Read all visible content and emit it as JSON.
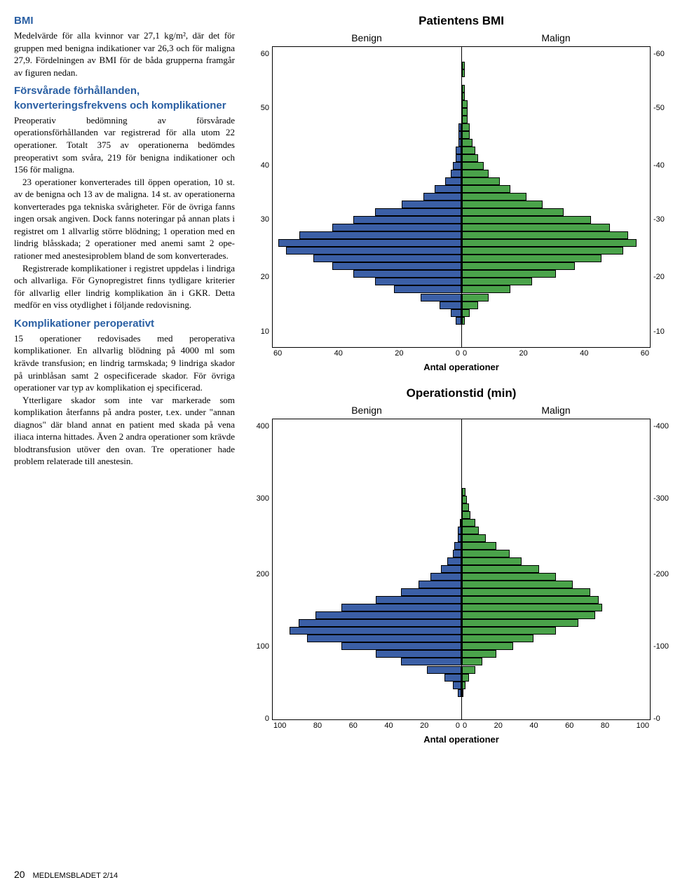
{
  "colors": {
    "heading_blue": "#2a5fa3",
    "bar_blue": "#3b5fa6",
    "bar_green": "#4aa34a",
    "border": "#000000",
    "background": "#ffffff"
  },
  "left": {
    "h1": "BMI",
    "p1": "Medelvärde för alla kvinnor var 27,1 kg/m², där det för gruppen med benigna indikationer var 26,3 och för maligna 27,9. Fördelningen av BMI för de båda grupperna framgår av figuren nedan.",
    "h2": "Försvårade förhållanden, konverteringsfrekvens och komplikationer",
    "p2": "Preoperativ bedömning av försvårade operationsförhållanden var registrerad för alla utom 22 operationer. Totalt 375 av operationerna bedömdes preoperativt som svåra, 219 för benigna indikationer och 156 för maligna.",
    "p3": "23 operationer konverterades till öppen operation, 10 st. av de benigna och 13 av de maligna. 14 st. av operationer­na konverterades pga tekniska svårighe­ter. För de övriga fanns ingen orsak angi­ven. Dock fanns noteringar på annan plats i registret om 1 allvarlig större blöd­ning; 1 operation med en lindrig blåsska­da; 2 operationer med anemi samt 2 ope­rationer med anestesiproblem bland de som konverterades.",
    "p4": "Registrerade komplikationer i regis­tret uppdelas i lindriga och allvarliga. För Gynopregistret finns tydligare kriterier för allvarlig eller lindrig komplikation än i GKR. Detta medför en viss otydlighet i följande redovisning.",
    "h3": "Komplikationer peroperativt",
    "p5": "15 operationer redovisades med perope­rativa komplikationer. En allvarlig blöd­ning på 4000 ml som krävde transfusion; en lindrig tarmskada; 9 lindriga skador på urinblåsan samt 2 ospecificerade ska­dor. För övriga operationer var typ av komplikation ej specificerad.",
    "p6": "Ytterligare skador som inte var mar­kerade som komplikation återfanns på andra poster, t.ex. under \"annan diagnos\" där bland annat en patient med skada på vena iliaca interna hittades. Även 2 andra operationer som krävde blodtransfusion utöver den ovan. Tre operationer hade problem relaterade till anestesin."
  },
  "chart1": {
    "title": "Patientens BMI",
    "panel_left": "Benign",
    "panel_right": "Malign",
    "xlabel": "Antal operationer",
    "y_ticks": [
      60,
      50,
      40,
      30,
      20,
      10
    ],
    "y_positions": [
      3,
      21,
      40,
      58,
      77,
      95
    ],
    "x_ticks_left": [
      60,
      40,
      20,
      0
    ],
    "x_ticks_right": [
      0,
      20,
      40,
      60
    ],
    "x_max": 70,
    "benign_bars": [
      0,
      0,
      0,
      0,
      0,
      0,
      0,
      0,
      0,
      1,
      1,
      1,
      2,
      2,
      3,
      4,
      6,
      10,
      14,
      22,
      32,
      40,
      48,
      60,
      68,
      65,
      55,
      48,
      40,
      32,
      25,
      15,
      8,
      4,
      2,
      0,
      0
    ],
    "malign_bars": [
      0,
      1,
      1,
      0,
      1,
      1,
      2,
      2,
      2,
      3,
      3,
      4,
      5,
      6,
      8,
      10,
      14,
      18,
      24,
      30,
      38,
      48,
      55,
      62,
      65,
      60,
      52,
      42,
      35,
      26,
      18,
      10,
      6,
      3,
      1,
      0,
      0
    ]
  },
  "chart2": {
    "title": "Operationstid (min)",
    "panel_left": "Benign",
    "panel_right": "Malign",
    "xlabel": "Antal operationer",
    "y_ticks": [
      400,
      300,
      200,
      100,
      0
    ],
    "y_positions": [
      3,
      27,
      52,
      76,
      100
    ],
    "x_ticks_left": [
      100,
      80,
      60,
      40,
      20,
      0
    ],
    "x_ticks_right": [
      0,
      20,
      40,
      60,
      80,
      100
    ],
    "x_max": 110,
    "benign_bars": [
      0,
      0,
      0,
      0,
      0,
      0,
      0,
      0,
      0,
      0,
      0,
      0,
      1,
      2,
      2,
      4,
      5,
      8,
      12,
      18,
      25,
      35,
      50,
      70,
      85,
      95,
      100,
      90,
      70,
      50,
      35,
      20,
      10,
      5,
      2,
      0,
      0
    ],
    "malign_bars": [
      0,
      0,
      0,
      0,
      0,
      0,
      0,
      0,
      2,
      3,
      4,
      5,
      8,
      10,
      14,
      20,
      28,
      35,
      45,
      55,
      65,
      75,
      80,
      82,
      78,
      68,
      55,
      42,
      30,
      20,
      12,
      8,
      4,
      2,
      1,
      0,
      0
    ]
  },
  "footer": {
    "page": "20",
    "pub": "MEDLEMSBLADET 2/14"
  }
}
